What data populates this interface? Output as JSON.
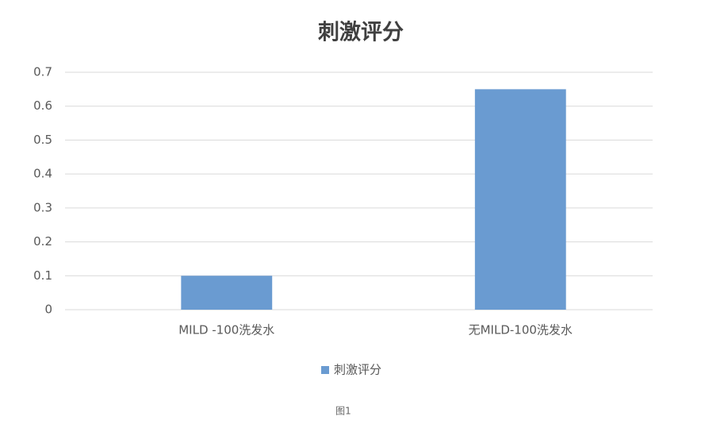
{
  "chart_data": {
    "type": "bar",
    "title": "刺激评分",
    "categories": [
      "MILD -100洗发水",
      "无MILD-100洗发水"
    ],
    "series": [
      {
        "name": "刺激评分",
        "color": "#6a9bd1",
        "values": [
          0.1,
          0.65
        ]
      }
    ],
    "ylim": [
      0,
      0.7
    ],
    "yticks": [
      0,
      0.1,
      0.2,
      0.3,
      0.4,
      0.5,
      0.6,
      0.7
    ],
    "grid": true,
    "legend": "bottom"
  },
  "caption": "图1"
}
